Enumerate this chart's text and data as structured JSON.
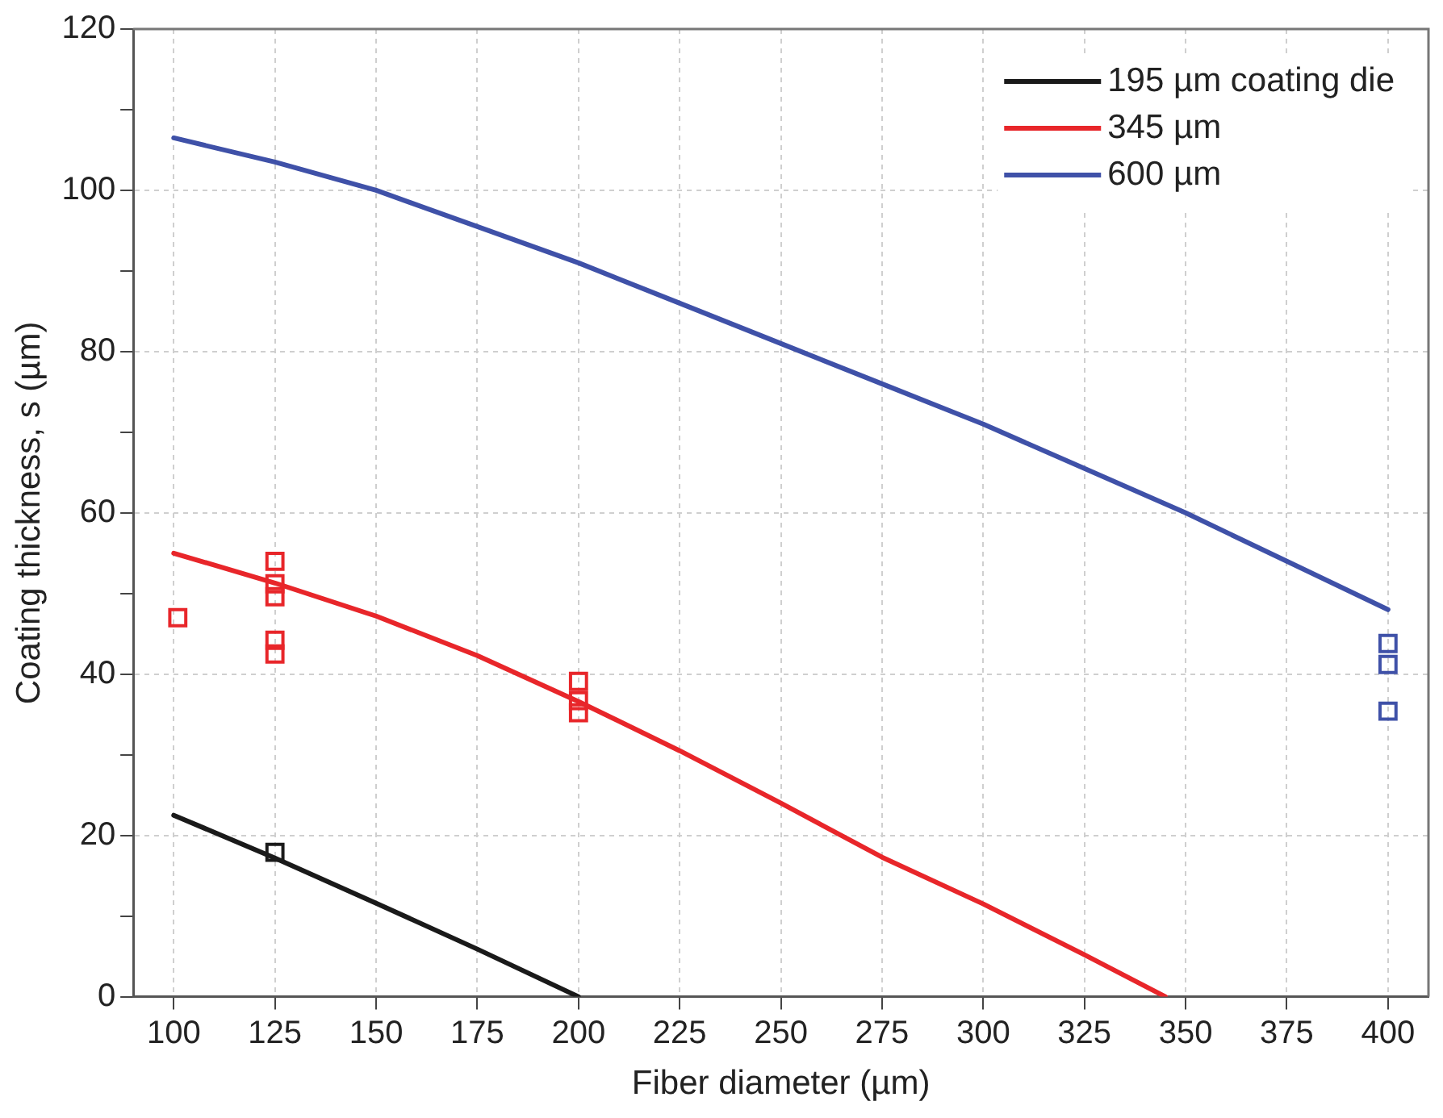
{
  "chart_data": {
    "type": "line",
    "xlabel": "Fiber diameter (µm)",
    "ylabel": "Coating thickness, s (µm)",
    "xlim": [
      90,
      410
    ],
    "xticks": [
      100,
      125,
      150,
      175,
      200,
      225,
      250,
      275,
      300,
      325,
      350,
      375,
      400
    ],
    "ylim": [
      0,
      120
    ],
    "yticks": [
      0,
      {
        "value": 10,
        "label": null
      },
      20,
      {
        "value": 30,
        "label": null
      },
      40,
      {
        "value": 50,
        "label": null
      },
      60,
      {
        "value": 70,
        "label": null
      },
      80,
      {
        "value": 90,
        "label": null
      },
      100,
      {
        "value": 110,
        "label": null
      },
      120
    ],
    "grid": true,
    "legend": "top right",
    "line_style": "solid",
    "series": [
      {
        "name": "195 µm coating die",
        "type": "line",
        "color": "#1a1a1a",
        "x": [
          100,
          125,
          150,
          175,
          200
        ],
        "values": [
          22.5,
          17.2,
          11.6,
          5.9,
          0
        ]
      },
      {
        "name": "345 µm",
        "type": "line",
        "color": "#e8262a",
        "x": [
          100,
          125,
          150,
          175,
          200,
          225,
          250,
          275,
          300,
          325,
          345
        ],
        "values": [
          55,
          51.3,
          47.2,
          42.3,
          36.6,
          30.5,
          24,
          17.3,
          11.5,
          5.2,
          0
        ]
      },
      {
        "name": "600 µm",
        "type": "line",
        "color": "#3f51a8",
        "x": [
          100,
          125,
          150,
          175,
          200,
          225,
          250,
          275,
          300,
          325,
          350,
          375,
          400
        ],
        "values": [
          106.5,
          103.5,
          100,
          95.5,
          91,
          86,
          81,
          76,
          71,
          65.5,
          60,
          54,
          48
        ]
      },
      {
        "type": "scatter",
        "marker": "square",
        "color": "#1a1a1a",
        "x": [
          125
        ],
        "values": [
          17.9
        ]
      },
      {
        "type": "scatter",
        "marker": "square",
        "color": "#e8262a",
        "x": [
          101,
          125,
          125,
          125,
          125,
          125,
          200,
          200,
          200
        ],
        "values": [
          47,
          54,
          51.2,
          49.6,
          44.2,
          42.5,
          39.1,
          36.7,
          35.2
        ]
      },
      {
        "type": "scatter",
        "marker": "square",
        "color": "#3f51a8",
        "x": [
          400,
          400,
          400
        ],
        "values": [
          43.8,
          41.2,
          35.4
        ]
      }
    ]
  }
}
